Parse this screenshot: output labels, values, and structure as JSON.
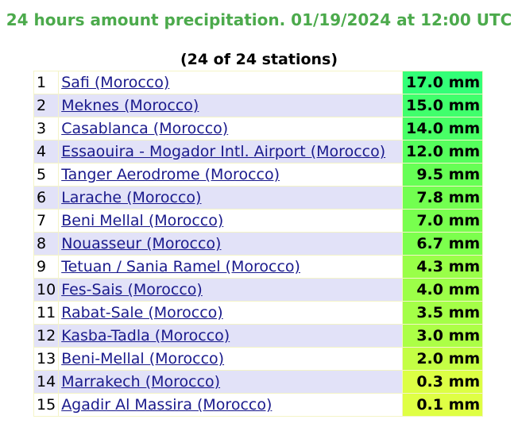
{
  "header": {
    "title": "24 hours amount precipitation. 01/19/2024 at 12:00 UTC",
    "subtitle": "(24 of 24 stations)"
  },
  "table": {
    "rows": [
      [
        "1",
        "Safi (Morocco)",
        "17.0 mm",
        "#33ff77"
      ],
      [
        "2",
        "Meknes (Morocco)",
        "15.0 mm",
        "#40ff6c"
      ],
      [
        "3",
        "Casablanca (Morocco)",
        "14.0 mm",
        "#48ff66"
      ],
      [
        "4",
        "Essaouira - Mogador Intl. Airport (Morocco)",
        "12.0 mm",
        "#55ff5c"
      ],
      [
        "5",
        "Tanger Aerodrome (Morocco)",
        "9.5 mm",
        "#66ff55"
      ],
      [
        "6",
        "Larache (Morocco)",
        "7.8 mm",
        "#72ff50"
      ],
      [
        "7",
        "Beni Mellal (Morocco)",
        "7.0 mm",
        "#78ff4e"
      ],
      [
        "8",
        "Nouasseur (Morocco)",
        "6.7 mm",
        "#7cff4d"
      ],
      [
        "9",
        "Tetuan / Sania Ramel (Morocco)",
        "4.3 mm",
        "#99ff48"
      ],
      [
        "10",
        "Fes-Sais (Morocco)",
        "4.0 mm",
        "#9cff48"
      ],
      [
        "11",
        "Rabat-Sale (Morocco)",
        "3.5 mm",
        "#a4ff47"
      ],
      [
        "12",
        "Kasba-Tadla (Morocco)",
        "3.0 mm",
        "#acff46"
      ],
      [
        "13",
        "Beni-Mellal (Morocco)",
        "2.0 mm",
        "#c4ff44"
      ],
      [
        "14",
        "Marrakech (Morocco)",
        "0.3 mm",
        "#dcff44"
      ],
      [
        "15",
        "Agadir Al Massira (Morocco)",
        "0.1 mm",
        "#dfff44"
      ]
    ]
  }
}
